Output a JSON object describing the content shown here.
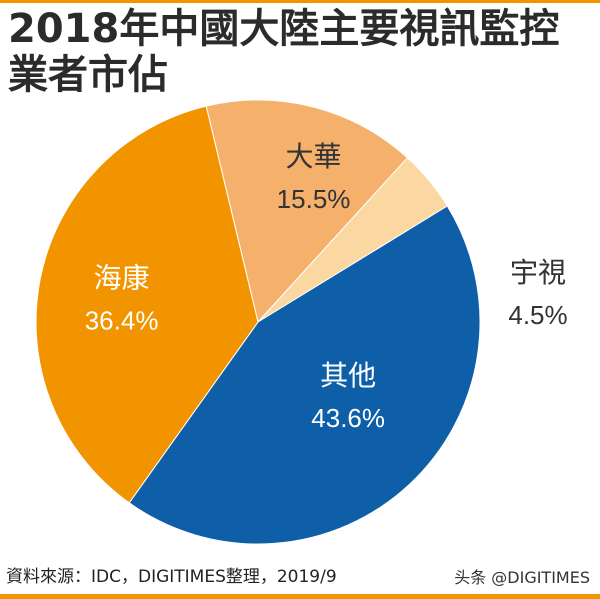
{
  "title": {
    "line1": "2018年中國大陸主要視訊監控",
    "line2": "業者市佔"
  },
  "chart_data": {
    "type": "pie",
    "title": "2018年中國大陸主要視訊監控業者市佔",
    "slices": [
      {
        "label": "大華",
        "value": 15.5,
        "display": "15.5%",
        "color": "#f5b06b"
      },
      {
        "label": "宇視",
        "value": 4.5,
        "display": "4.5%",
        "color": "#fbd8a2"
      },
      {
        "label": "其他",
        "value": 43.6,
        "display": "43.6%",
        "color": "#0e5fa8"
      },
      {
        "label": "海康",
        "value": 36.4,
        "display": "36.4%",
        "color": "#f29400"
      }
    ]
  },
  "footer": {
    "source": "資料來源：IDC，DIGITIMES整理，2019/9"
  },
  "watermark": "头条 @DIGITIMES",
  "colors": {
    "accent": "#f29400",
    "label_dark": "#333333",
    "label_light": "#ffffff"
  }
}
